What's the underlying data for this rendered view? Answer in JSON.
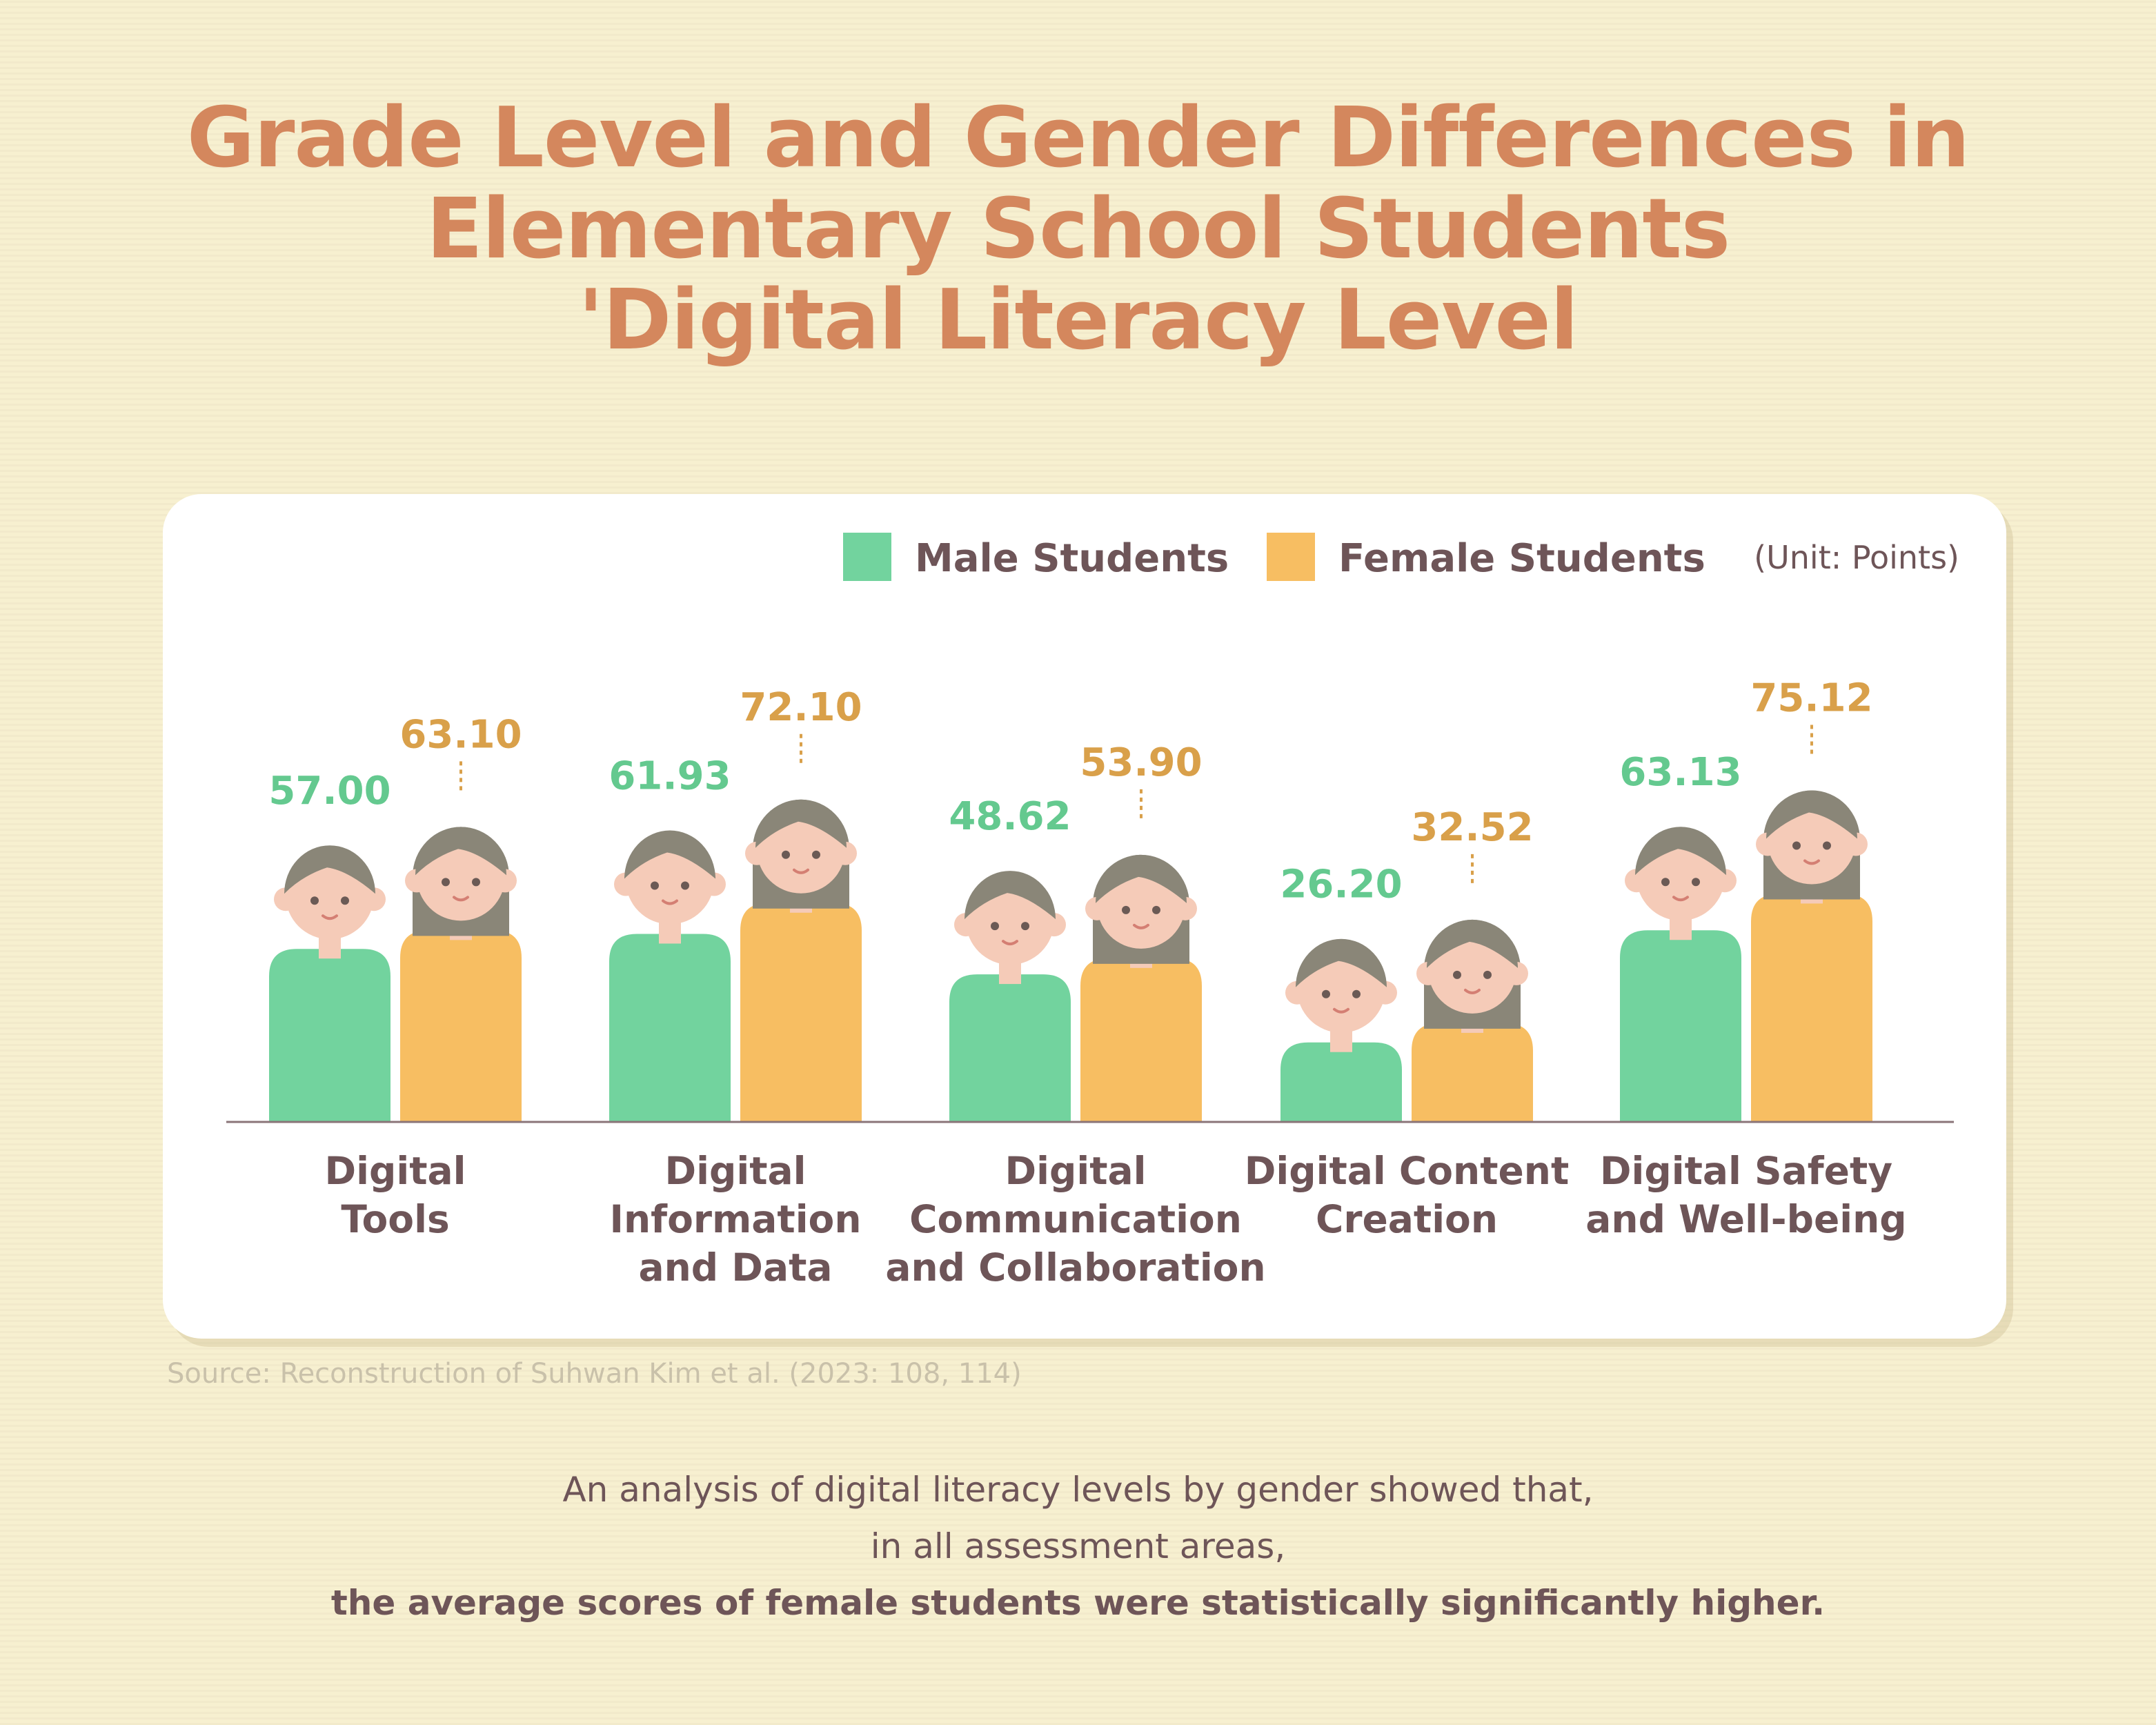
{
  "title": {
    "line1": "Grade Level and Gender Differences in",
    "line2": "Elementary School Students",
    "line3": "'Digital Literacy Level"
  },
  "colors": {
    "male": "#72d39e",
    "female": "#f7be62",
    "male_value": "#64c98f",
    "female_value": "#d9a04a",
    "skin": "#f5cbb8",
    "hair": "#8a8678",
    "title": "#d4875d",
    "text": "#6e5558"
  },
  "chart_data": {
    "type": "bar",
    "categories": [
      [
        "Digital",
        "Tools"
      ],
      [
        "Digital",
        "Information",
        "and Data"
      ],
      [
        "Digital",
        "Communication",
        "and Collaboration"
      ],
      [
        "Digital Content",
        "Creation"
      ],
      [
        "Digital Safety",
        "and Well-being"
      ]
    ],
    "series": [
      {
        "name": "Male Students",
        "values": [
          57.0,
          61.93,
          48.62,
          26.2,
          63.13
        ]
      },
      {
        "name": "Female Students",
        "values": [
          63.1,
          72.1,
          53.9,
          32.52,
          75.12
        ]
      }
    ],
    "value_labels": {
      "male": [
        "57.00",
        "61.93",
        "48.62",
        "26.20",
        "63.13"
      ],
      "female": [
        "63.10",
        "72.10",
        "53.90",
        "32.52",
        "75.12"
      ]
    },
    "unit": "(Unit: Points)",
    "legend_position": "top-right",
    "grid": false
  },
  "source": "Source: Reconstruction of Suhwan Kim et al. (2023: 108, 114)",
  "summary": {
    "line1": "An analysis of digital literacy levels by gender showed that,",
    "line2": "in all assessment areas,",
    "line3": "the average scores of female students were statistically significantly higher."
  }
}
